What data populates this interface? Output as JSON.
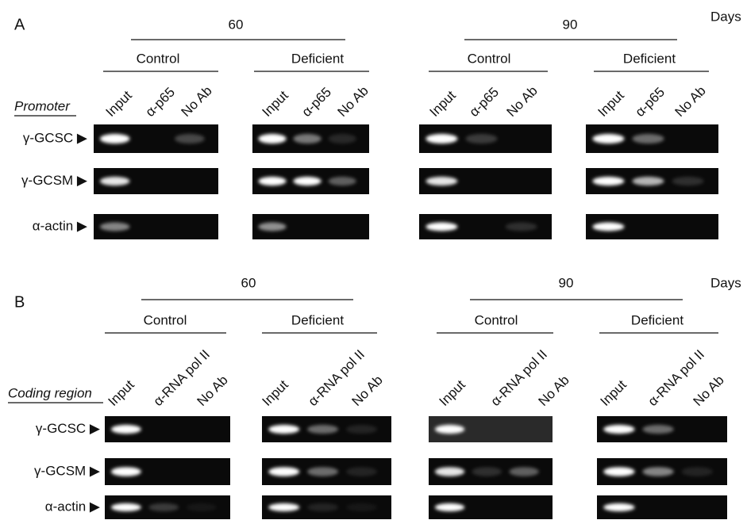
{
  "panels": [
    {
      "label": "A",
      "days_label": "Days",
      "region_label": "Promoter",
      "groups": [
        {
          "day": "60",
          "conditions": [
            {
              "name": "Control",
              "lanes": [
                "Input",
                "α-p65",
                "No Ab"
              ]
            },
            {
              "name": "Deficient",
              "lanes": [
                "Input",
                "α-p65",
                "No Ab"
              ]
            }
          ]
        },
        {
          "day": "90",
          "conditions": [
            {
              "name": "Control",
              "lanes": [
                "Input",
                "α-p65",
                "No Ab"
              ]
            },
            {
              "name": "Deficient",
              "lanes": [
                "Input",
                "α-p65",
                "No Ab"
              ]
            }
          ]
        }
      ],
      "rows": [
        "γ-GCSC ▶",
        "γ-GCSM ▶",
        "α-actin ▶"
      ]
    },
    {
      "label": "B",
      "days_label": "Days",
      "region_label": "Coding region",
      "groups": [
        {
          "day": "60",
          "conditions": [
            {
              "name": "Control",
              "lanes": [
                "Input",
                "α-RNA pol II",
                "No Ab"
              ]
            },
            {
              "name": "Deficient",
              "lanes": [
                "Input",
                "α-RNA pol II",
                "No Ab"
              ]
            }
          ]
        },
        {
          "day": "90",
          "conditions": [
            {
              "name": "Control",
              "lanes": [
                "Input",
                "α-RNA pol II",
                "No Ab"
              ]
            },
            {
              "name": "Deficient",
              "lanes": [
                "Input",
                "α-RNA pol II",
                "No Ab"
              ]
            }
          ]
        }
      ],
      "rows": [
        "γ-GCSC ▶",
        "γ-GCSM ▶",
        "α-actin ▶"
      ]
    }
  ]
}
